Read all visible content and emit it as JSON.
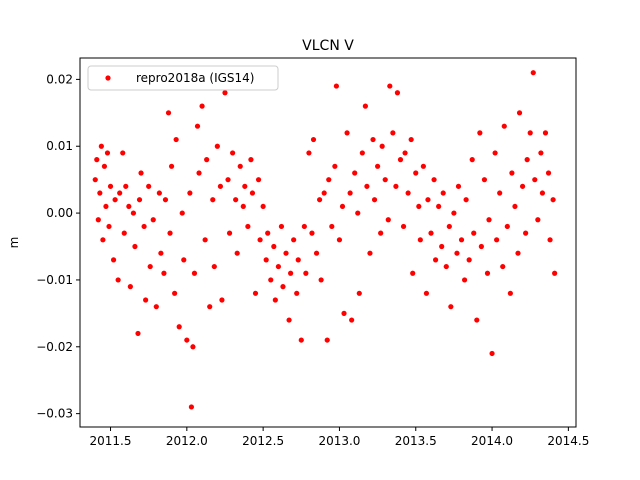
{
  "chart_data": {
    "type": "scatter",
    "title": "VLCN V",
    "xlabel": "",
    "ylabel": "m",
    "xlim": [
      2011.3,
      2014.55
    ],
    "ylim": [
      -0.032,
      0.0232
    ],
    "x_ticks": [
      2011.5,
      2012.0,
      2012.5,
      2013.0,
      2013.5,
      2014.0,
      2014.5
    ],
    "x_tick_labels": [
      "2011.5",
      "2012.0",
      "2012.5",
      "2013.0",
      "2013.5",
      "2014.0",
      "2014.5"
    ],
    "y_ticks": [
      -0.03,
      -0.02,
      -0.01,
      0.0,
      0.01,
      0.02
    ],
    "y_tick_labels": [
      "−0.03",
      "−0.02",
      "−0.01",
      "0.00",
      "0.01",
      "0.02"
    ],
    "legend": {
      "position": "top-left",
      "entries": [
        "repro2018a (IGS14)"
      ]
    },
    "grid": false,
    "series": [
      {
        "name": "repro2018a (IGS14)",
        "color": "#ff0000",
        "marker": "circle",
        "points": [
          [
            2011.4,
            0.005
          ],
          [
            2011.41,
            0.008
          ],
          [
            2011.42,
            -0.001
          ],
          [
            2011.43,
            0.003
          ],
          [
            2011.44,
            0.01
          ],
          [
            2011.45,
            -0.004
          ],
          [
            2011.46,
            0.007
          ],
          [
            2011.47,
            0.001
          ],
          [
            2011.48,
            0.009
          ],
          [
            2011.49,
            -0.002
          ],
          [
            2011.5,
            0.004
          ],
          [
            2011.52,
            -0.007
          ],
          [
            2011.53,
            0.002
          ],
          [
            2011.55,
            -0.01
          ],
          [
            2011.56,
            0.003
          ],
          [
            2011.58,
            0.009
          ],
          [
            2011.59,
            -0.003
          ],
          [
            2011.6,
            0.004
          ],
          [
            2011.62,
            0.001
          ],
          [
            2011.63,
            -0.011
          ],
          [
            2011.65,
            0.0
          ],
          [
            2011.66,
            -0.005
          ],
          [
            2011.68,
            -0.018
          ],
          [
            2011.69,
            0.002
          ],
          [
            2011.7,
            0.006
          ],
          [
            2011.72,
            -0.002
          ],
          [
            2011.73,
            -0.013
          ],
          [
            2011.75,
            0.004
          ],
          [
            2011.76,
            -0.008
          ],
          [
            2011.78,
            -0.001
          ],
          [
            2011.8,
            -0.014
          ],
          [
            2011.82,
            0.003
          ],
          [
            2011.83,
            -0.006
          ],
          [
            2011.85,
            -0.009
          ],
          [
            2011.86,
            0.002
          ],
          [
            2011.88,
            0.015
          ],
          [
            2011.89,
            -0.003
          ],
          [
            2011.9,
            0.007
          ],
          [
            2011.92,
            -0.012
          ],
          [
            2011.93,
            0.011
          ],
          [
            2011.95,
            -0.017
          ],
          [
            2011.97,
            0.0
          ],
          [
            2011.98,
            -0.007
          ],
          [
            2012.0,
            -0.019
          ],
          [
            2012.02,
            0.003
          ],
          [
            2012.03,
            -0.029
          ],
          [
            2012.04,
            -0.02
          ],
          [
            2012.05,
            -0.009
          ],
          [
            2012.07,
            0.013
          ],
          [
            2012.08,
            0.006
          ],
          [
            2012.1,
            0.016
          ],
          [
            2012.12,
            -0.004
          ],
          [
            2012.13,
            0.008
          ],
          [
            2012.15,
            -0.014
          ],
          [
            2012.17,
            0.002
          ],
          [
            2012.18,
            -0.008
          ],
          [
            2012.2,
            0.01
          ],
          [
            2012.22,
            0.004
          ],
          [
            2012.23,
            -0.013
          ],
          [
            2012.25,
            0.018
          ],
          [
            2012.27,
            0.005
          ],
          [
            2012.28,
            -0.003
          ],
          [
            2012.3,
            0.009
          ],
          [
            2012.32,
            0.002
          ],
          [
            2012.33,
            -0.006
          ],
          [
            2012.35,
            0.007
          ],
          [
            2012.37,
            0.001
          ],
          [
            2012.38,
            0.004
          ],
          [
            2012.4,
            -0.002
          ],
          [
            2012.42,
            0.008
          ],
          [
            2012.43,
            0.003
          ],
          [
            2012.45,
            -0.012
          ],
          [
            2012.47,
            0.005
          ],
          [
            2012.48,
            -0.004
          ],
          [
            2012.5,
            0.001
          ],
          [
            2012.52,
            -0.007
          ],
          [
            2012.53,
            -0.003
          ],
          [
            2012.55,
            -0.01
          ],
          [
            2012.57,
            -0.005
          ],
          [
            2012.58,
            -0.013
          ],
          [
            2012.6,
            -0.008
          ],
          [
            2012.62,
            -0.002
          ],
          [
            2012.63,
            -0.011
          ],
          [
            2012.65,
            -0.006
          ],
          [
            2012.67,
            -0.016
          ],
          [
            2012.68,
            -0.009
          ],
          [
            2012.7,
            -0.004
          ],
          [
            2012.72,
            -0.012
          ],
          [
            2012.73,
            -0.007
          ],
          [
            2012.75,
            -0.019
          ],
          [
            2012.77,
            -0.002
          ],
          [
            2012.78,
            -0.009
          ],
          [
            2012.8,
            0.009
          ],
          [
            2012.82,
            -0.003
          ],
          [
            2012.83,
            0.011
          ],
          [
            2012.85,
            -0.006
          ],
          [
            2012.87,
            0.002
          ],
          [
            2012.88,
            -0.01
          ],
          [
            2012.9,
            0.003
          ],
          [
            2012.92,
            -0.019
          ],
          [
            2012.93,
            0.005
          ],
          [
            2012.95,
            -0.002
          ],
          [
            2012.97,
            0.007
          ],
          [
            2012.98,
            0.019
          ],
          [
            2013.0,
            -0.004
          ],
          [
            2013.02,
            0.001
          ],
          [
            2013.03,
            -0.015
          ],
          [
            2013.05,
            0.012
          ],
          [
            2013.07,
            0.003
          ],
          [
            2013.08,
            -0.016
          ],
          [
            2013.1,
            0.006
          ],
          [
            2013.12,
            0.0
          ],
          [
            2013.13,
            -0.012
          ],
          [
            2013.15,
            0.009
          ],
          [
            2013.17,
            0.016
          ],
          [
            2013.18,
            0.004
          ],
          [
            2013.2,
            -0.006
          ],
          [
            2013.22,
            0.011
          ],
          [
            2013.23,
            0.002
          ],
          [
            2013.25,
            0.007
          ],
          [
            2013.27,
            -0.003
          ],
          [
            2013.28,
            0.01
          ],
          [
            2013.3,
            0.005
          ],
          [
            2013.32,
            -0.001
          ],
          [
            2013.33,
            0.019
          ],
          [
            2013.35,
            0.012
          ],
          [
            2013.37,
            0.004
          ],
          [
            2013.38,
            0.018
          ],
          [
            2013.4,
            0.008
          ],
          [
            2013.42,
            -0.002
          ],
          [
            2013.43,
            0.009
          ],
          [
            2013.45,
            0.003
          ],
          [
            2013.47,
            0.011
          ],
          [
            2013.48,
            -0.009
          ],
          [
            2013.5,
            0.006
          ],
          [
            2013.52,
            0.001
          ],
          [
            2013.53,
            -0.004
          ],
          [
            2013.55,
            0.007
          ],
          [
            2013.57,
            -0.012
          ],
          [
            2013.58,
            0.002
          ],
          [
            2013.6,
            -0.003
          ],
          [
            2013.62,
            0.005
          ],
          [
            2013.63,
            -0.007
          ],
          [
            2013.65,
            0.001
          ],
          [
            2013.67,
            -0.005
          ],
          [
            2013.68,
            0.003
          ],
          [
            2013.7,
            -0.008
          ],
          [
            2013.72,
            -0.002
          ],
          [
            2013.73,
            -0.014
          ],
          [
            2013.75,
            0.0
          ],
          [
            2013.77,
            -0.006
          ],
          [
            2013.78,
            0.004
          ],
          [
            2013.8,
            -0.004
          ],
          [
            2013.82,
            -0.01
          ],
          [
            2013.83,
            0.002
          ],
          [
            2013.85,
            -0.007
          ],
          [
            2013.87,
            0.008
          ],
          [
            2013.88,
            -0.003
          ],
          [
            2013.9,
            -0.016
          ],
          [
            2013.92,
            0.012
          ],
          [
            2013.93,
            -0.005
          ],
          [
            2013.95,
            0.005
          ],
          [
            2013.97,
            -0.009
          ],
          [
            2013.98,
            -0.001
          ],
          [
            2014.0,
            -0.021
          ],
          [
            2014.02,
            0.009
          ],
          [
            2014.03,
            -0.004
          ],
          [
            2014.05,
            0.003
          ],
          [
            2014.07,
            -0.008
          ],
          [
            2014.08,
            0.013
          ],
          [
            2014.1,
            -0.002
          ],
          [
            2014.12,
            -0.012
          ],
          [
            2014.13,
            0.006
          ],
          [
            2014.15,
            0.001
          ],
          [
            2014.17,
            -0.006
          ],
          [
            2014.18,
            0.015
          ],
          [
            2014.2,
            0.004
          ],
          [
            2014.22,
            -0.003
          ],
          [
            2014.23,
            0.008
          ],
          [
            2014.25,
            0.012
          ],
          [
            2014.27,
            0.021
          ],
          [
            2014.28,
            0.005
          ],
          [
            2014.3,
            -0.001
          ],
          [
            2014.32,
            0.009
          ],
          [
            2014.33,
            0.003
          ],
          [
            2014.35,
            0.012
          ],
          [
            2014.37,
            0.006
          ],
          [
            2014.38,
            -0.004
          ],
          [
            2014.4,
            0.002
          ],
          [
            2014.41,
            -0.009
          ]
        ]
      }
    ]
  }
}
